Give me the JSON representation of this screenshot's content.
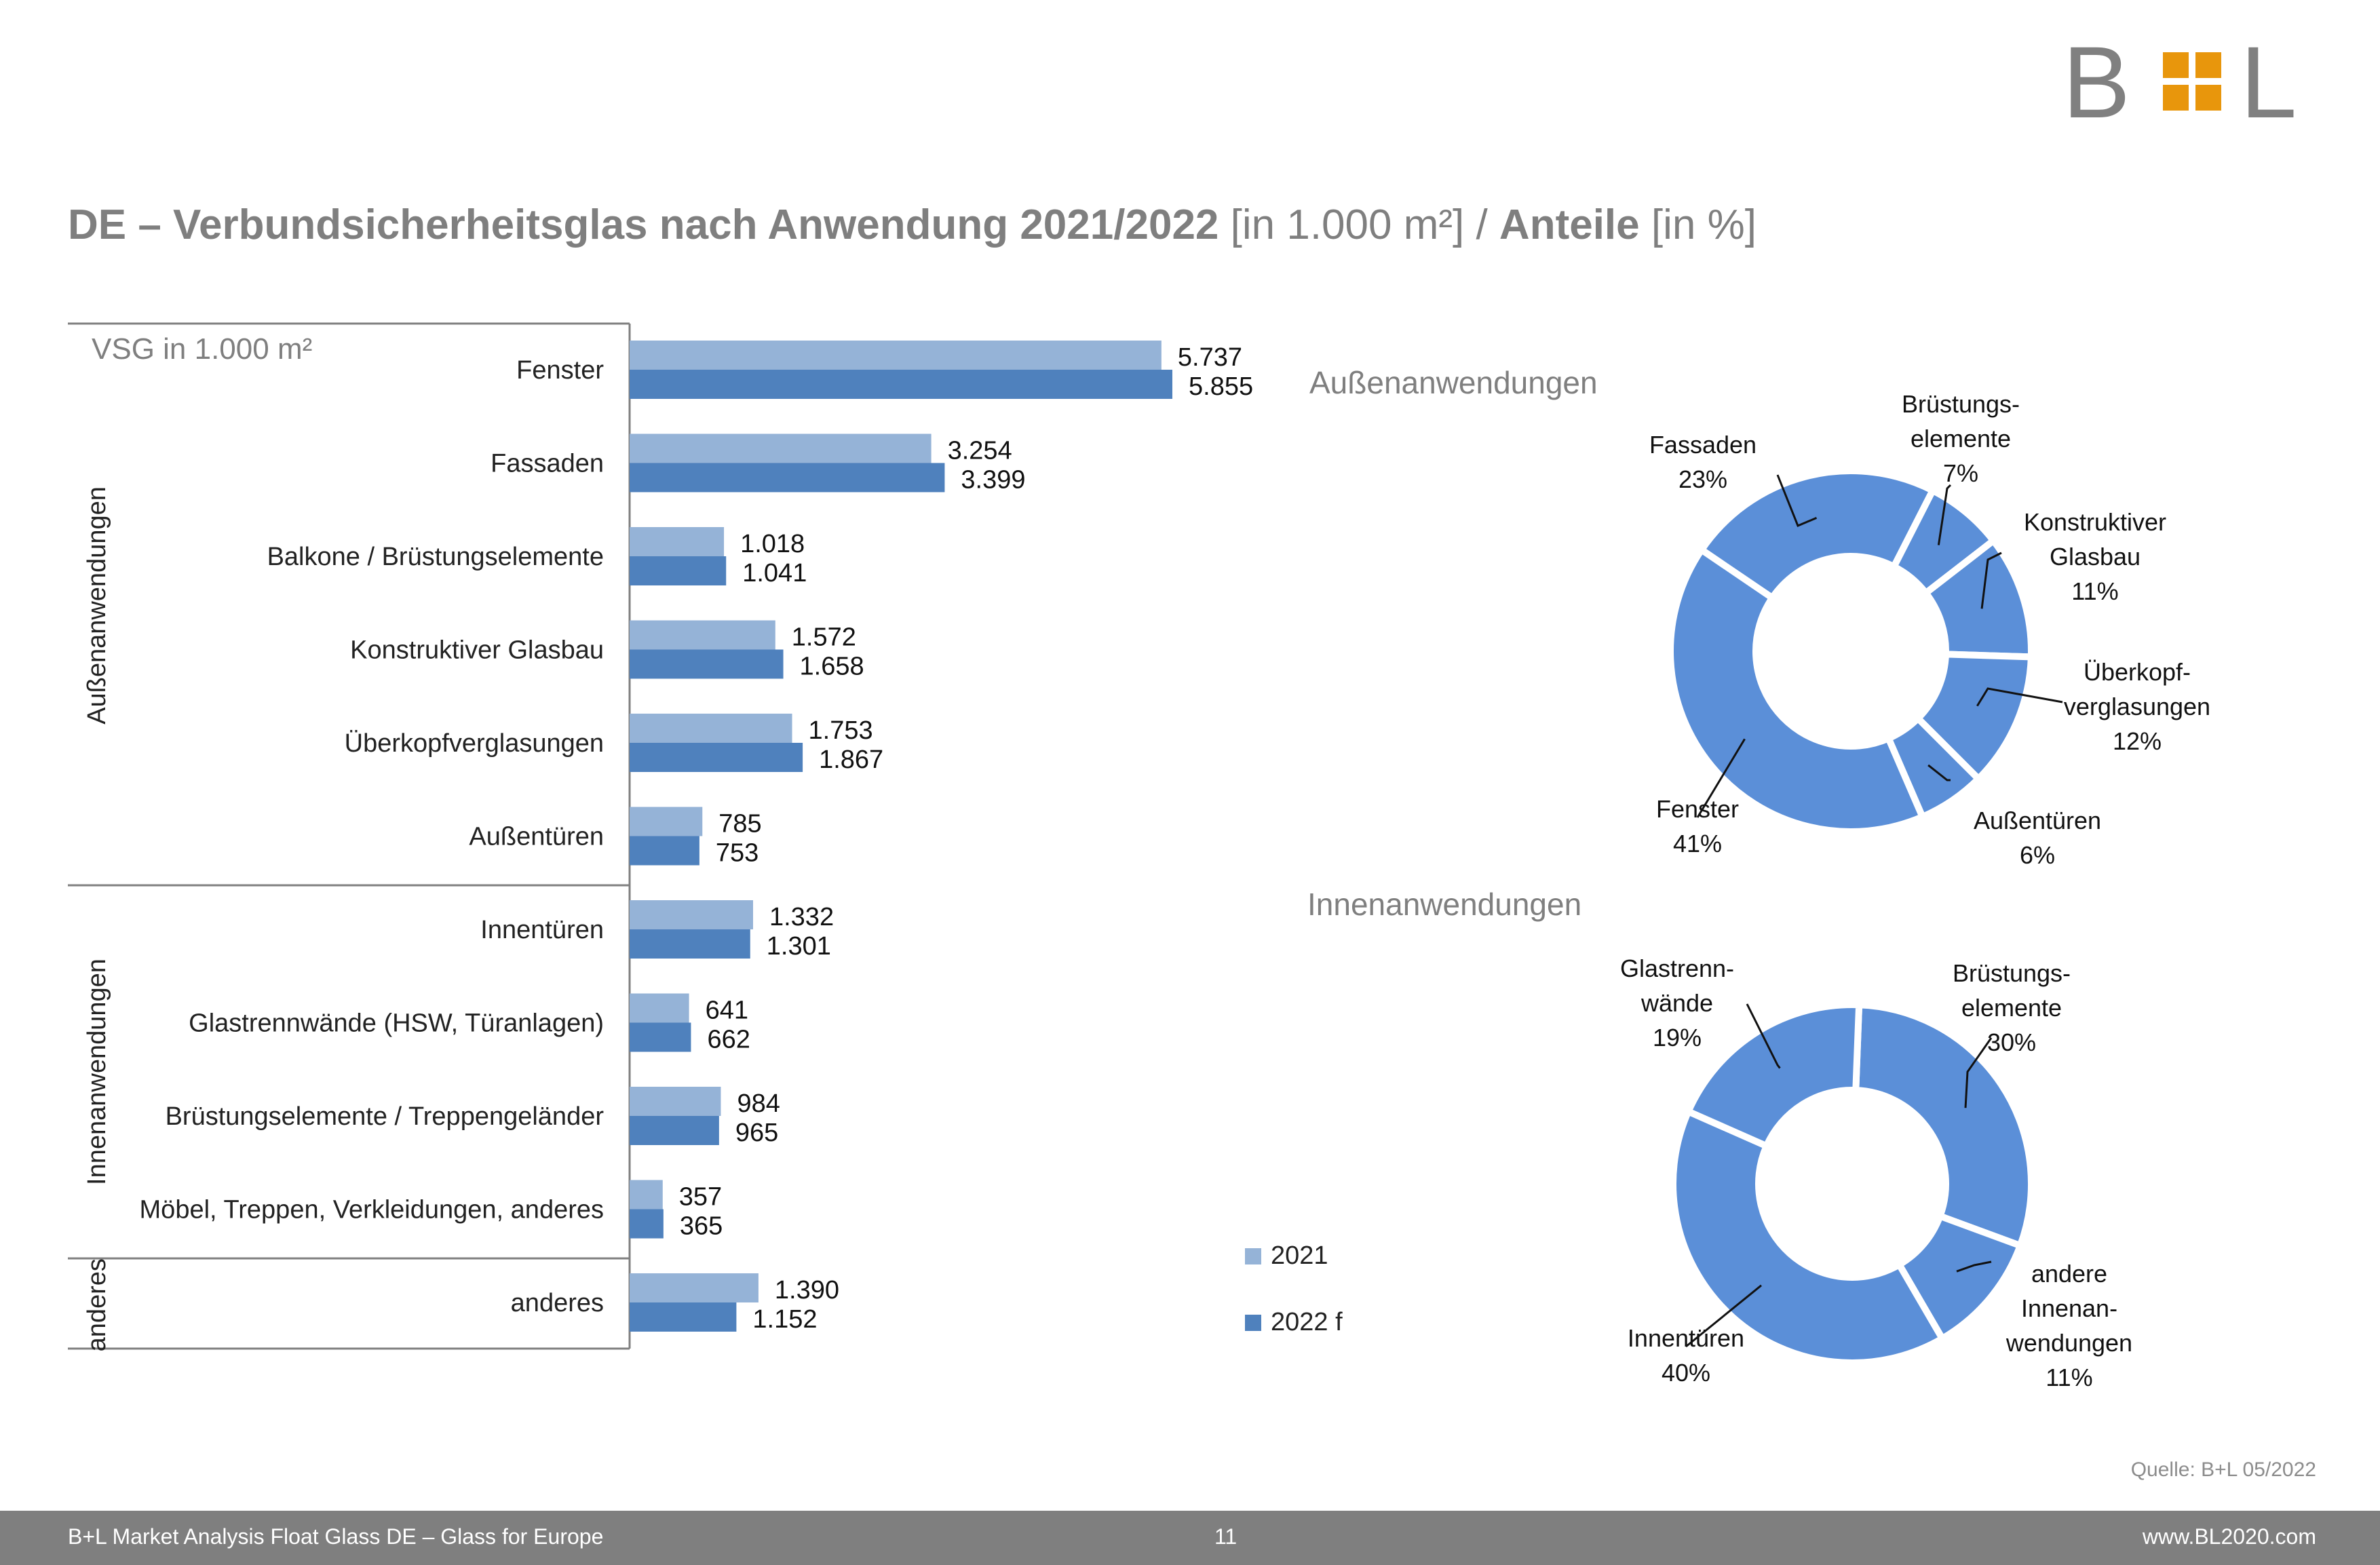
{
  "logo": {
    "text_left": "B",
    "text_right": "L",
    "colors": {
      "letters": "#808080",
      "squares": "#e8960c"
    }
  },
  "title": {
    "bold_part": "DE – Verbundsicherheitsglas nach Anwendung 2021/2022",
    "normal_part_1": " [in 1.000 m²] / ",
    "bold_part_2": "Anteile",
    "normal_part_2": " [in %]"
  },
  "chart_data": [
    {
      "type": "bar",
      "orientation": "horizontal",
      "title": "",
      "unit_label": "VSG in 1.000 m²",
      "groups": [
        {
          "label": "Außenanwendungen",
          "categories": [
            "Fenster",
            "Fassaden",
            "Balkone / Brüstungselemente",
            "Konstruktiver Glasbau",
            "Überkopfverglasungen",
            "Außentüren"
          ]
        },
        {
          "label": "Innenanwendungen",
          "categories": [
            "Innentüren",
            "Glastrennwände (HSW, Türanlagen)",
            "Brüstungselemente / Treppengeländer",
            "Möbel, Treppen, Verkleidungen, anderes"
          ]
        },
        {
          "label": "anderes",
          "categories": [
            "anderes"
          ]
        }
      ],
      "categories": [
        "Fenster",
        "Fassaden",
        "Balkone / Brüstungselemente",
        "Konstruktiver Glasbau",
        "Überkopfverglasungen",
        "Außentüren",
        "Innentüren",
        "Glastrennwände (HSW, Türanlagen)",
        "Brüstungselemente / Treppengeländer",
        "Möbel, Treppen, Verkleidungen, anderes",
        "anderes"
      ],
      "series": [
        {
          "name": "2021",
          "color": "#95b3d7",
          "values": [
            5737,
            3254,
            1018,
            1572,
            1753,
            785,
            1332,
            641,
            984,
            357,
            1390
          ],
          "labels": [
            "5.737",
            "3.254",
            "1.018",
            "1.572",
            "1.753",
            "785",
            "1.332",
            "641",
            "984",
            "357",
            "1.390"
          ]
        },
        {
          "name": "2022 f",
          "color": "#4f81bd",
          "values": [
            5855,
            3399,
            1041,
            1658,
            1867,
            753,
            1301,
            662,
            965,
            365,
            1152
          ],
          "labels": [
            "5.855",
            "3.399",
            "1.041",
            "1.658",
            "1.867",
            "753",
            "1.301",
            "662",
            "965",
            "365",
            "1.152"
          ]
        }
      ],
      "xlim": [
        0,
        6500
      ],
      "legend_position": "right"
    },
    {
      "type": "pie",
      "variant": "donut",
      "title": "Außenanwendungen",
      "color": "#5b8fd8",
      "slices": [
        {
          "label": "Fassaden",
          "value": 23,
          "display": "23%"
        },
        {
          "label": "Brüstungs- elemente",
          "value": 7,
          "display": "7%"
        },
        {
          "label": "Konstruktiver Glasbau",
          "value": 11,
          "display": "11%"
        },
        {
          "label": "Überkopf- verglasungen",
          "value": 12,
          "display": "12%"
        },
        {
          "label": "Außentüren",
          "value": 6,
          "display": "6%"
        },
        {
          "label": "Fenster",
          "value": 41,
          "display": "41%"
        }
      ]
    },
    {
      "type": "pie",
      "variant": "donut",
      "title": "Innenanwendungen",
      "color": "#5b8fd8",
      "slices": [
        {
          "label": "Brüstungs- elemente",
          "value": 30,
          "display": "30%"
        },
        {
          "label": "andere Innenan- wendungen",
          "value": 11,
          "display": "11%"
        },
        {
          "label": "Innentüren",
          "value": 40,
          "display": "40%"
        },
        {
          "label": "Glastrenn- wände",
          "value": 19,
          "display": "19%"
        }
      ]
    }
  ],
  "source": "Quelle: B+L 05/2022",
  "footer": {
    "left": "B+L Market Analysis Float Glass DE – Glass for Europe",
    "page": "11",
    "right": "www.BL2020.com"
  }
}
